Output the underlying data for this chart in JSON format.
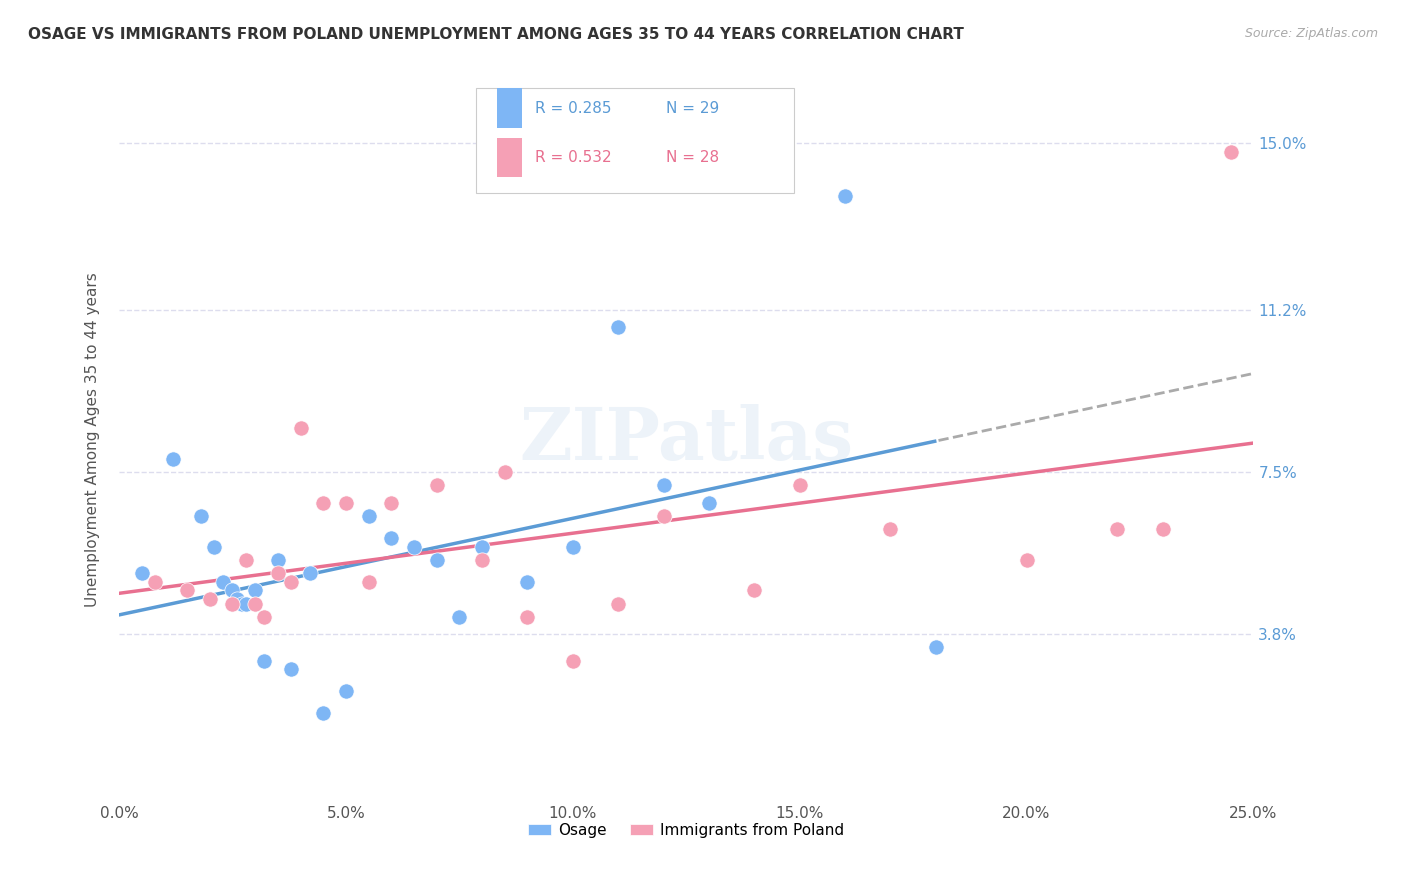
{
  "title": "OSAGE VS IMMIGRANTS FROM POLAND UNEMPLOYMENT AMONG AGES 35 TO 44 YEARS CORRELATION CHART",
  "source": "Source: ZipAtlas.com",
  "ylabel": "Unemployment Among Ages 35 to 44 years",
  "xlabel_vals": [
    0.0,
    5.0,
    10.0,
    15.0,
    20.0,
    25.0
  ],
  "ylabel_vals": [
    3.8,
    7.5,
    11.2,
    15.0
  ],
  "xlim": [
    0.0,
    25.0
  ],
  "ylim": [
    0.0,
    16.5
  ],
  "legend_label1": "Osage",
  "legend_label2": "Immigrants from Poland",
  "r1": "0.285",
  "n1": "29",
  "r2": "0.532",
  "n2": "28",
  "color_blue": "#7eb6f5",
  "color_pink": "#f5a0b5",
  "color_blue_text": "#5b9bd5",
  "color_pink_text": "#e87090",
  "watermark": "ZIPatlas",
  "osage_x": [
    0.5,
    1.2,
    1.8,
    2.1,
    2.3,
    2.5,
    2.6,
    2.7,
    2.8,
    3.0,
    3.2,
    3.5,
    3.8,
    4.2,
    4.5,
    5.0,
    5.5,
    6.0,
    6.5,
    7.0,
    7.5,
    8.0,
    9.0,
    10.0,
    11.0,
    12.0,
    13.0,
    16.0,
    18.0
  ],
  "osage_y": [
    5.2,
    7.8,
    6.5,
    5.8,
    5.0,
    4.8,
    4.6,
    4.5,
    4.5,
    4.8,
    3.2,
    5.5,
    3.0,
    5.2,
    2.0,
    2.5,
    6.5,
    6.0,
    5.8,
    5.5,
    4.2,
    5.8,
    5.0,
    5.8,
    10.8,
    7.2,
    6.8,
    13.8,
    3.5
  ],
  "poland_x": [
    0.8,
    1.5,
    2.0,
    2.5,
    2.8,
    3.0,
    3.2,
    3.5,
    3.8,
    4.0,
    4.5,
    5.0,
    5.5,
    6.0,
    7.0,
    8.0,
    8.5,
    9.0,
    10.0,
    11.0,
    12.0,
    14.0,
    15.0,
    17.0,
    20.0,
    22.0,
    23.0,
    24.5
  ],
  "poland_y": [
    5.0,
    4.8,
    4.6,
    4.5,
    5.5,
    4.5,
    4.2,
    5.2,
    5.0,
    8.5,
    6.8,
    6.8,
    5.0,
    6.8,
    7.2,
    5.5,
    7.5,
    4.2,
    3.2,
    4.5,
    6.5,
    4.8,
    7.2,
    6.2,
    5.5,
    6.2,
    6.2,
    14.8
  ]
}
